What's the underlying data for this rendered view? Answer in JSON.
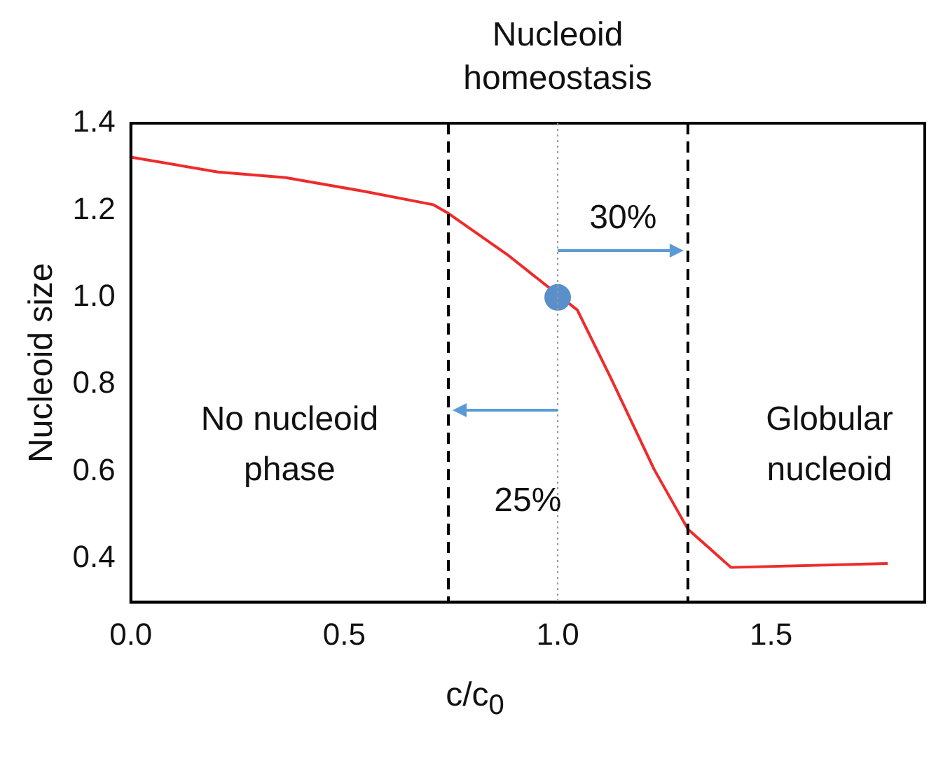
{
  "chart_data": {
    "type": "line",
    "xlabel": "c/c$_{0}$",
    "ylabel": "Nucleoid size",
    "xlim": [
      0,
      1.86
    ],
    "ylim": [
      0.3,
      1.4
    ],
    "xticks": [
      {
        "value": 0,
        "label": "0.0"
      },
      0.5,
      {
        "value": 1,
        "label": "1.0"
      },
      1.5
    ],
    "yticks": [
      0.4,
      0.6,
      0.8,
      {
        "value": 1,
        "label": "1.0"
      },
      1.2,
      1.4
    ],
    "series": [
      {
        "color": "#ee2b2b",
        "x": [
          0,
          0.204,
          0.363,
          0.55,
          0.708,
          0.744,
          0.881,
          1.0,
          1.046,
          1.125,
          1.226,
          1.305,
          1.406,
          1.773
        ],
        "values": [
          1.322,
          1.288,
          1.275,
          1.243,
          1.213,
          1.193,
          1.099,
          null,
          0.971,
          0.814,
          0.605,
          0.468,
          0.38,
          0.389
        ]
      },
      {
        "type": "scatter",
        "marker": "circle",
        "color": "#5b8fc9",
        "x": [
          1.0
        ],
        "values": [
          1.0
        ]
      }
    ],
    "ref_lines": [
      {
        "axis": "x",
        "value": 0.744,
        "line_style": "dashed",
        "color": "#000000"
      },
      {
        "axis": "x",
        "value": 1.0,
        "line_style": "dotted",
        "color": "#999999"
      },
      {
        "axis": "x",
        "value": 1.305,
        "line_style": "dashed",
        "color": "#000000"
      }
    ],
    "title": "Nucleoid homeostasis",
    "annotations": [
      "No nucleoid phase",
      "Globular nucleoid",
      "30%",
      "25%"
    ],
    "marker": "none",
    "line_style": "solid",
    "grid": false,
    "legend": false
  }
}
